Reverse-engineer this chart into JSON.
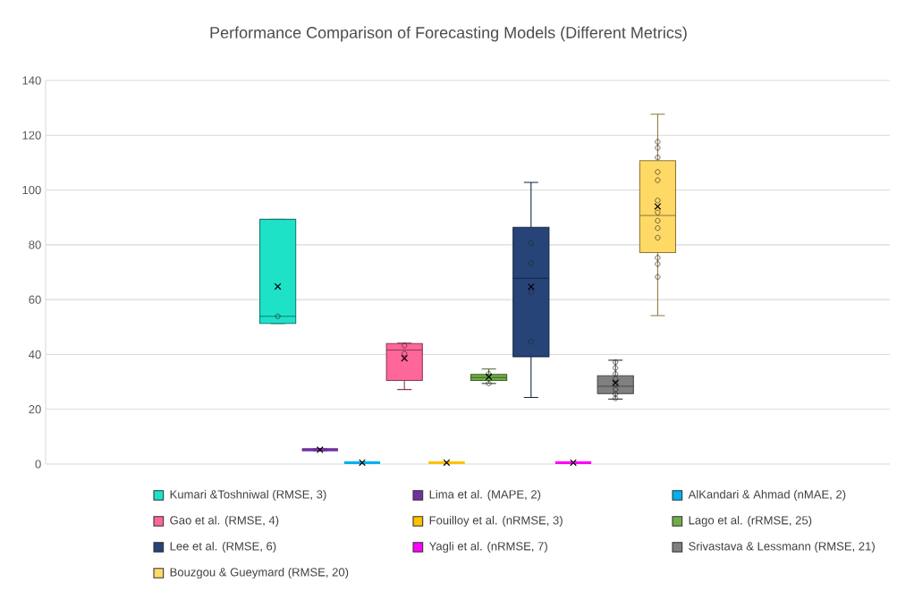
{
  "chart_data": {
    "type": "box",
    "title": "Performance Comparison of Forecasting Models (Different Metrics)",
    "categories": [
      null
    ],
    "ylim": [
      0,
      140
    ],
    "yticks": [
      0,
      20,
      40,
      60,
      80,
      100,
      120,
      140
    ],
    "grid": "y",
    "legend": "bottom",
    "tick_labels": "y",
    "marker": "circle",
    "series": [
      {
        "name": "Kumari &Toshniwal (RMSE, 3)",
        "color": "#1de2c8",
        "boxes": [
          {
            "low": 51.3,
            "q1": 51.3,
            "median": 53.9,
            "q3": 89.3,
            "high": 89.3,
            "mean": 64.8,
            "outliers": [
              53.9
            ]
          }
        ]
      },
      {
        "name": "Lima et al. (MAPE, 2)",
        "color": "#7030a0",
        "boxes": [
          {
            "low": 5.2,
            "q1": 5.2,
            "median": 5.2,
            "q3": 5.2,
            "high": 5.2,
            "mean": 5.2
          }
        ]
      },
      {
        "name": "AlKandari & Ahmad (nMAE, 2)",
        "color": "#00b0f0",
        "boxes": [
          {
            "low": 0.5,
            "q1": 0.5,
            "median": 0.5,
            "q3": 0.5,
            "high": 0.5,
            "mean": 0.5
          }
        ]
      },
      {
        "name": "Gao et al. (RMSE, 4)",
        "color": "#ff6699",
        "boxes": [
          {
            "low": 27.2,
            "q1": 30.5,
            "median": 41.6,
            "q3": 44.0,
            "high": 44.1,
            "mean": 38.6,
            "outliers": [
              43.2,
              40.3
            ]
          }
        ]
      },
      {
        "name": "Fouilloy et al. (nRMSE, 3)",
        "color": "#ffc000",
        "boxes": [
          {
            "low": 0.5,
            "q1": 0.5,
            "median": 0.5,
            "q3": 0.5,
            "high": 0.5,
            "mean": 0.5
          }
        ]
      },
      {
        "name": "Lago et al. (rRMSE, 25)",
        "color": "#70ad47",
        "boxes": [
          {
            "low": 29.4,
            "q1": 30.5,
            "median": 31.6,
            "q3": 32.7,
            "high": 34.7,
            "mean": 31.8,
            "outliers": [
              32.9,
              29.4
            ]
          }
        ]
      },
      {
        "name": "Lee et al. (RMSE, 6)",
        "color": "#264478",
        "boxes": [
          {
            "low": 24.3,
            "q1": 39.2,
            "median": 67.8,
            "q3": 86.4,
            "high": 102.8,
            "mean": 64.7,
            "outliers": [
              80.6,
              73.3,
              62.7,
              44.6
            ]
          }
        ]
      },
      {
        "name": "Yagli et al. (nRMSE, 7)",
        "color": "#ff00ff",
        "boxes": [
          {
            "low": 0.5,
            "q1": 0.5,
            "median": 0.5,
            "q3": 0.5,
            "high": 0.5,
            "mean": 0.5
          }
        ]
      },
      {
        "name": "Srivastava & Lessmann (RMSE, 21)",
        "color": "#808080",
        "boxes": [
          {
            "low": 23.7,
            "q1": 25.7,
            "median": 28.4,
            "q3": 32.2,
            "high": 37.9,
            "mean": 29.6,
            "outliers": [
              37.2,
              35.1,
              32.9,
              31.1,
              29.2,
              27.2,
              25.5,
              24.0
            ]
          }
        ]
      },
      {
        "name": "Bouzgou & Gueymard (RMSE, 20)",
        "color": "#ffd966",
        "boxes": [
          {
            "low": 54.2,
            "q1": 77.2,
            "median": 90.7,
            "q3": 110.7,
            "high": 127.7,
            "mean": 94.0,
            "outliers": [
              117.6,
              115.4,
              111.9,
              106.6,
              103.6,
              96.2,
              91.8,
              88.8,
              86.1,
              82.6,
              75.3,
              73.0,
              68.3
            ]
          }
        ]
      }
    ]
  }
}
